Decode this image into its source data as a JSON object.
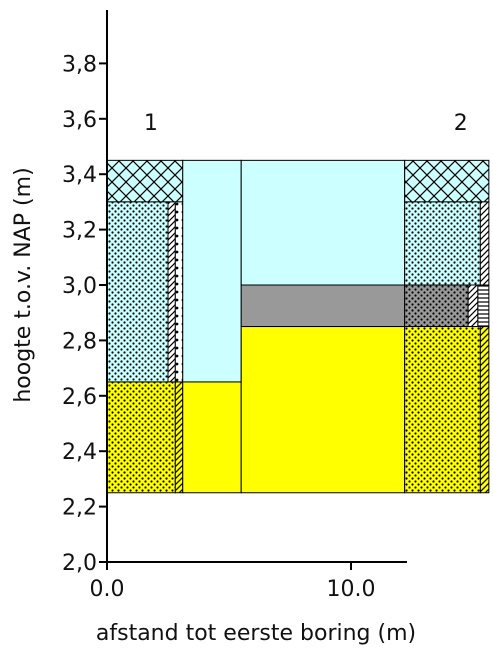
{
  "chart_data": {
    "type": "cross-section",
    "xlabel": "afstand tot eerste boring (m)",
    "ylabel": "hoogte t.o.v. NAP (m)",
    "xlim": [
      0.0,
      15.7
    ],
    "ylim": [
      2.0,
      4.0
    ],
    "x_ticks": [
      {
        "value": 0.0,
        "label": "0.0"
      },
      {
        "value": 10.0,
        "label": "10.0"
      }
    ],
    "y_ticks": [
      {
        "value": 2.0,
        "label": "2,0"
      },
      {
        "value": 2.2,
        "label": "2,2"
      },
      {
        "value": 2.4,
        "label": "2,4"
      },
      {
        "value": 2.6,
        "label": "2,6"
      },
      {
        "value": 2.8,
        "label": "2,8"
      },
      {
        "value": 3.0,
        "label": "3,0"
      },
      {
        "value": 3.2,
        "label": "3,2"
      },
      {
        "value": 3.4,
        "label": "3,4"
      },
      {
        "value": 3.6,
        "label": "3,6"
      },
      {
        "value": 3.8,
        "label": "3,8"
      }
    ],
    "borings": [
      {
        "label": "1",
        "x": 1.8,
        "y": 3.56
      },
      {
        "label": "2",
        "x": 14.5,
        "y": 3.56
      }
    ],
    "units": [
      {
        "name": "unit-cyan-left-top",
        "x0": 3.1,
        "x1": 5.5,
        "y0": 2.65,
        "y1": 3.45,
        "fill": "#ccffff"
      },
      {
        "name": "unit-cyan-middle-top",
        "x0": 5.5,
        "x1": 12.2,
        "y0": 3.0,
        "y1": 3.45,
        "fill": "#ccffff"
      },
      {
        "name": "unit-grey-middle",
        "x0": 5.5,
        "x1": 12.2,
        "y0": 2.85,
        "y1": 3.0,
        "fill": "#999999"
      },
      {
        "name": "unit-yellow-left",
        "x0": 3.1,
        "x1": 5.5,
        "y0": 2.25,
        "y1": 2.65,
        "fill": "#ffff00"
      },
      {
        "name": "unit-yellow-middle",
        "x0": 5.5,
        "x1": 12.2,
        "y0": 2.25,
        "y1": 2.85,
        "fill": "#ffff00"
      }
    ],
    "boring_layers": [
      {
        "boring": "1",
        "x0": 0.0,
        "x1": 3.1,
        "y0": 3.3,
        "y1": 3.45,
        "fill": "#ccffff",
        "pattern": "crosshatch"
      },
      {
        "boring": "1",
        "x0": 0.0,
        "x1": 2.5,
        "y0": 2.65,
        "y1": 3.3,
        "fill": "#ccffff",
        "pattern": "dots"
      },
      {
        "boring": "1",
        "x0": 2.5,
        "x1": 2.8,
        "y0": 2.65,
        "y1": 3.3,
        "fill": "#ffffff",
        "pattern": "diagonal"
      },
      {
        "boring": "1",
        "x0": 2.8,
        "x1": 3.1,
        "y0": 2.65,
        "y1": 3.3,
        "fill": "#ffffff",
        "pattern": "sparse-dots"
      },
      {
        "boring": "1",
        "x0": 0.0,
        "x1": 2.8,
        "y0": 2.25,
        "y1": 2.65,
        "fill": "#ffff00",
        "pattern": "dots"
      },
      {
        "boring": "1",
        "x0": 2.8,
        "x1": 3.1,
        "y0": 2.25,
        "y1": 2.65,
        "fill": "#ffff00",
        "pattern": "diagonal"
      },
      {
        "boring": "2",
        "x0": 12.2,
        "x1": 15.65,
        "y0": 3.3,
        "y1": 3.45,
        "fill": "#ccffff",
        "pattern": "crosshatch"
      },
      {
        "boring": "2",
        "x0": 12.2,
        "x1": 15.3,
        "y0": 3.0,
        "y1": 3.3,
        "fill": "#ccffff",
        "pattern": "dots"
      },
      {
        "boring": "2",
        "x0": 15.3,
        "x1": 15.65,
        "y0": 3.0,
        "y1": 3.3,
        "fill": "#ffffff",
        "pattern": "diagonal"
      },
      {
        "boring": "2",
        "x0": 12.2,
        "x1": 14.8,
        "y0": 2.85,
        "y1": 3.0,
        "fill": "#999999",
        "pattern": "dots"
      },
      {
        "boring": "2",
        "x0": 14.8,
        "x1": 15.2,
        "y0": 2.85,
        "y1": 3.0,
        "fill": "#ffffff",
        "pattern": "diagonal"
      },
      {
        "boring": "2",
        "x0": 15.2,
        "x1": 15.65,
        "y0": 2.85,
        "y1": 3.0,
        "fill": "#ffffff",
        "pattern": "horizontal"
      },
      {
        "boring": "2",
        "x0": 12.2,
        "x1": 15.3,
        "y0": 2.25,
        "y1": 2.85,
        "fill": "#ffff00",
        "pattern": "dots"
      },
      {
        "boring": "2",
        "x0": 15.3,
        "x1": 15.65,
        "y0": 2.25,
        "y1": 2.85,
        "fill": "#ffff00",
        "pattern": "diagonal"
      }
    ],
    "colors": {
      "clay_cyan": "#ccffff",
      "peat_grey": "#999999",
      "sand_yellow": "#ffff00"
    }
  }
}
